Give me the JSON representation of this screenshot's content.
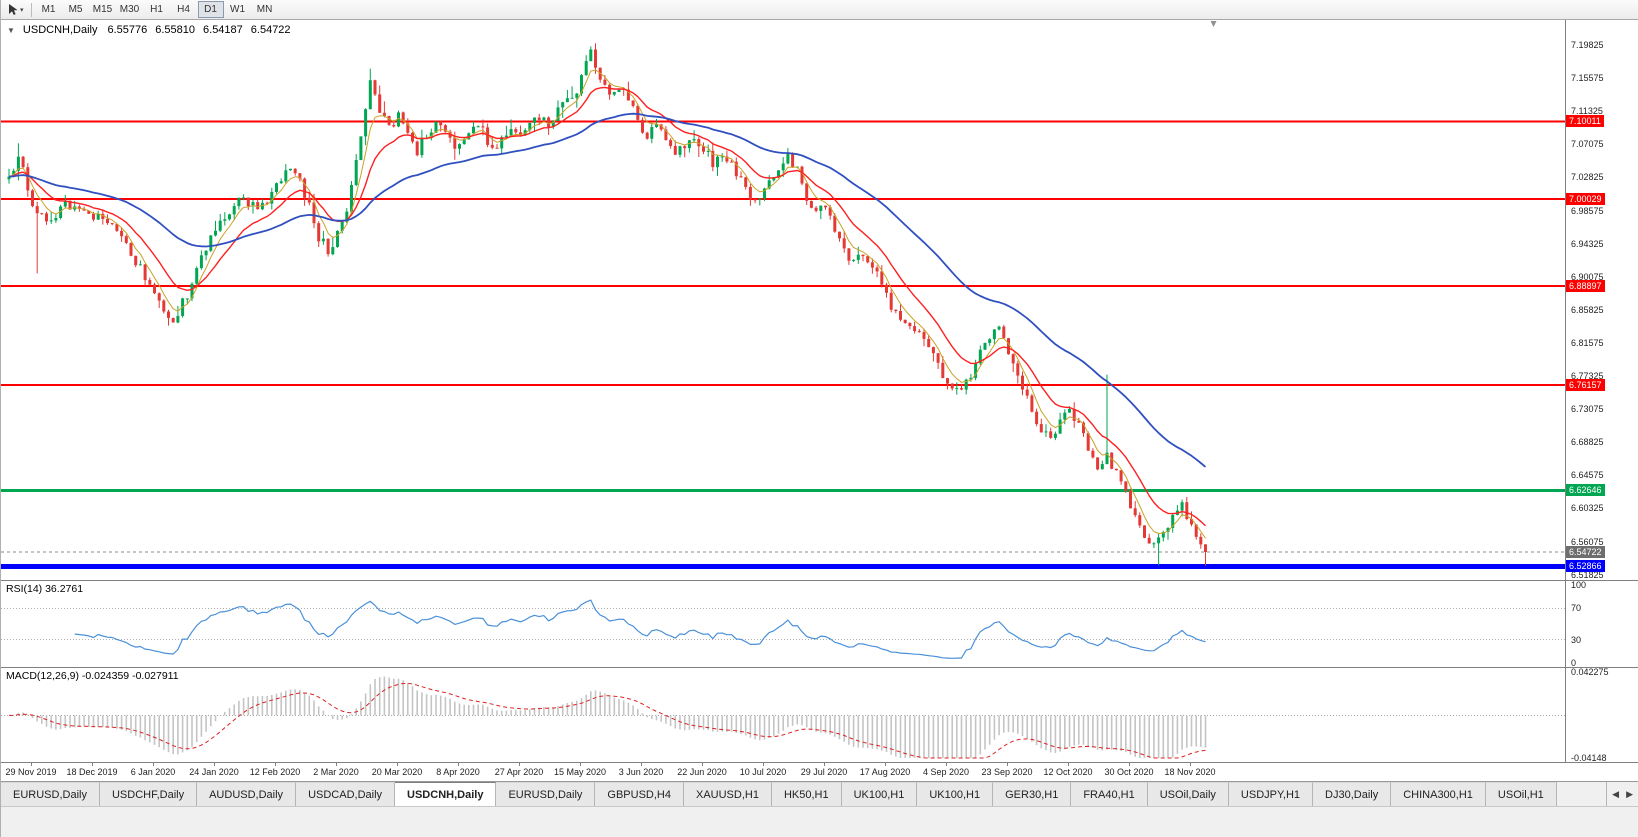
{
  "window": {
    "toolbar": {
      "timeframes": [
        "M1",
        "M5",
        "M15",
        "M30",
        "H1",
        "H4",
        "D1",
        "W1",
        "MN"
      ],
      "active_timeframe": "D1",
      "dropdown_glyph": "▾"
    }
  },
  "chart_data": {
    "type": "candlestick",
    "symbol_label": "USDCNH,Daily",
    "collapse_glyph": "▼",
    "ohlc_readout": {
      "open": "6.55776",
      "high": "6.55810",
      "low": "6.54187",
      "close": "6.54722"
    },
    "price_axis_labels": [
      "7.19825",
      "7.15575",
      "7.11325",
      "7.07075",
      "7.02825",
      "6.98575",
      "6.94325",
      "6.90075",
      "6.85825",
      "6.81575",
      "6.77325",
      "6.73075",
      "6.68825",
      "6.64575",
      "6.60325",
      "6.56075",
      "6.51825"
    ],
    "x_labels": [
      "29 Nov 2019",
      "18 Dec 2019",
      "6 Jan 2020",
      "24 Jan 2020",
      "12 Feb 2020",
      "2 Mar 2020",
      "20 Mar 2020",
      "8 Apr 2020",
      "27 Apr 2020",
      "15 May 2020",
      "3 Jun 2020",
      "22 Jun 2020",
      "10 Jul 2020",
      "29 Jul 2020",
      "17 Aug 2020",
      "4 Sep 2020",
      "23 Sep 2020",
      "12 Oct 2020",
      "30 Oct 2020",
      "18 Nov 2020"
    ],
    "levels": [
      {
        "value": "7.10011",
        "color": "#ff0000",
        "width": 2
      },
      {
        "value": "7.00029",
        "color": "#ff0000",
        "width": 2
      },
      {
        "value": "6.88897",
        "color": "#ff0000",
        "width": 2
      },
      {
        "value": "6.76157",
        "color": "#ff0000",
        "width": 2
      },
      {
        "value": "6.62646",
        "color": "#00a651",
        "width": 3
      },
      {
        "value": "6.52866",
        "color": "#0000ff",
        "width": 5
      }
    ],
    "current_price": {
      "value": "6.54722",
      "line_color": "#888888",
      "tag_color": "#6e6e6e"
    },
    "candle_up_color": "#00a651",
    "candle_down_color": "#e53935",
    "candle_count": 256,
    "price_path": [
      [
        0,
        7.025
      ],
      [
        2,
        7.055
      ],
      [
        5,
        6.995
      ],
      [
        8,
        6.968
      ],
      [
        12,
        6.993
      ],
      [
        16,
        6.985
      ],
      [
        20,
        6.972
      ],
      [
        24,
        6.958
      ],
      [
        27,
        6.922
      ],
      [
        30,
        6.892
      ],
      [
        33,
        6.858
      ],
      [
        35,
        6.845
      ],
      [
        38,
        6.878
      ],
      [
        41,
        6.923
      ],
      [
        44,
        6.962
      ],
      [
        47,
        6.986
      ],
      [
        50,
        7.001
      ],
      [
        53,
        6.987
      ],
      [
        55,
        6.996
      ],
      [
        58,
        7.028
      ],
      [
        60,
        7.042
      ],
      [
        62,
        7.022
      ],
      [
        64,
        6.992
      ],
      [
        66,
        6.952
      ],
      [
        68,
        6.936
      ],
      [
        70,
        6.954
      ],
      [
        72,
        6.984
      ],
      [
        74,
        7.048
      ],
      [
        76,
        7.118
      ],
      [
        77,
        7.155
      ],
      [
        79,
        7.112
      ],
      [
        81,
        7.092
      ],
      [
        83,
        7.108
      ],
      [
        85,
        7.082
      ],
      [
        87,
        7.062
      ],
      [
        89,
        7.084
      ],
      [
        91,
        7.098
      ],
      [
        93,
        7.082
      ],
      [
        95,
        7.066
      ],
      [
        97,
        7.08
      ],
      [
        99,
        7.094
      ],
      [
        101,
        7.086
      ],
      [
        103,
        7.062
      ],
      [
        105,
        7.076
      ],
      [
        107,
        7.092
      ],
      [
        109,
        7.082
      ],
      [
        111,
        7.096
      ],
      [
        113,
        7.106
      ],
      [
        115,
        7.096
      ],
      [
        117,
        7.112
      ],
      [
        119,
        7.126
      ],
      [
        121,
        7.142
      ],
      [
        123,
        7.172
      ],
      [
        124,
        7.192
      ],
      [
        126,
        7.156
      ],
      [
        128,
        7.132
      ],
      [
        130,
        7.146
      ],
      [
        132,
        7.126
      ],
      [
        134,
        7.102
      ],
      [
        136,
        7.082
      ],
      [
        138,
        7.092
      ],
      [
        140,
        7.076
      ],
      [
        142,
        7.062
      ],
      [
        144,
        7.072
      ],
      [
        146,
        7.082
      ],
      [
        148,
        7.066
      ],
      [
        150,
        7.046
      ],
      [
        152,
        7.06
      ],
      [
        154,
        7.042
      ],
      [
        156,
        7.022
      ],
      [
        158,
        7.006
      ],
      [
        160,
        7.002
      ],
      [
        163,
        7.032
      ],
      [
        166,
        7.058
      ],
      [
        168,
        7.036
      ],
      [
        170,
        7.002
      ],
      [
        172,
        6.982
      ],
      [
        174,
        6.996
      ],
      [
        176,
        6.962
      ],
      [
        178,
        6.936
      ],
      [
        180,
        6.916
      ],
      [
        182,
        6.93
      ],
      [
        184,
        6.912
      ],
      [
        186,
        6.892
      ],
      [
        188,
        6.862
      ],
      [
        190,
        6.842
      ],
      [
        193,
        6.832
      ],
      [
        196,
        6.812
      ],
      [
        199,
        6.772
      ],
      [
        202,
        6.752
      ],
      [
        205,
        6.772
      ],
      [
        208,
        6.822
      ],
      [
        211,
        6.836
      ],
      [
        213,
        6.798
      ],
      [
        215,
        6.772
      ],
      [
        217,
        6.742
      ],
      [
        219,
        6.716
      ],
      [
        221,
        6.698
      ],
      [
        223,
        6.702
      ],
      [
        226,
        6.732
      ],
      [
        228,
        6.712
      ],
      [
        230,
        6.682
      ],
      [
        232,
        6.657
      ],
      [
        234,
        6.672
      ],
      [
        236,
        6.648
      ],
      [
        238,
        6.622
      ],
      [
        240,
        6.592
      ],
      [
        242,
        6.566
      ],
      [
        244,
        6.552
      ],
      [
        246,
        6.572
      ],
      [
        248,
        6.597
      ],
      [
        250,
        6.607
      ],
      [
        252,
        6.585
      ],
      [
        253,
        6.57
      ],
      [
        254,
        6.558
      ],
      [
        255,
        6.547
      ]
    ],
    "spikes": [
      [
        2,
        "high",
        7.072
      ],
      [
        6,
        "low",
        6.905
      ],
      [
        34,
        "low",
        6.838
      ],
      [
        77,
        "high",
        7.168
      ],
      [
        124,
        "high",
        7.1965
      ],
      [
        234,
        "high",
        6.775
      ],
      [
        245,
        "low",
        6.53
      ],
      [
        255,
        "low",
        6.5295
      ]
    ],
    "moving_averages": [
      {
        "name": "ma-fast-yellow",
        "period": 5,
        "color": "#c9a227",
        "width": 1
      },
      {
        "name": "ma-mid-red",
        "period": 13,
        "color": "#ff2020",
        "width": 1.4
      },
      {
        "name": "ma-slow-blue",
        "period": 45,
        "color": "#3050c0",
        "width": 1.8
      }
    ],
    "rsi": {
      "label": "RSI(14) 36.2761",
      "period": 14,
      "color": "#4a90d9",
      "axis_labels": [
        "100",
        "70",
        "30",
        "0"
      ],
      "level_lines": [
        70,
        30
      ]
    },
    "macd": {
      "label": "MACD(12,26,9) -0.024359 -0.027911",
      "fast": 12,
      "slow": 26,
      "signal": 9,
      "axis_max": "0.042275",
      "axis_min": "-0.04148",
      "hist_color": "#c4c4c4",
      "signal_color": "#dd2222"
    }
  },
  "tabs": {
    "scroll_left": "◀",
    "scroll_right": "▶",
    "items": [
      {
        "label": "EURUSD,Daily",
        "active": false
      },
      {
        "label": "USDCHF,Daily",
        "active": false
      },
      {
        "label": "AUDUSD,Daily",
        "active": false
      },
      {
        "label": "USDCAD,Daily",
        "active": false
      },
      {
        "label": "USDCNH,Daily",
        "active": true
      },
      {
        "label": "EURUSD,Daily",
        "active": false
      },
      {
        "label": "GBPUSD,H4",
        "active": false
      },
      {
        "label": "XAUUSD,H1",
        "active": false
      },
      {
        "label": "HK50,H1",
        "active": false
      },
      {
        "label": "UK100,H1",
        "active": false
      },
      {
        "label": "UK100,H1",
        "active": false
      },
      {
        "label": "GER30,H1",
        "active": false
      },
      {
        "label": "FRA40,H1",
        "active": false
      },
      {
        "label": "USOil,Daily",
        "active": false
      },
      {
        "label": "USDJPY,H1",
        "active": false
      },
      {
        "label": "DJ30,Daily",
        "active": false
      },
      {
        "label": "CHINA300,H1",
        "active": false
      },
      {
        "label": "USOil,H1",
        "active": false
      }
    ]
  }
}
